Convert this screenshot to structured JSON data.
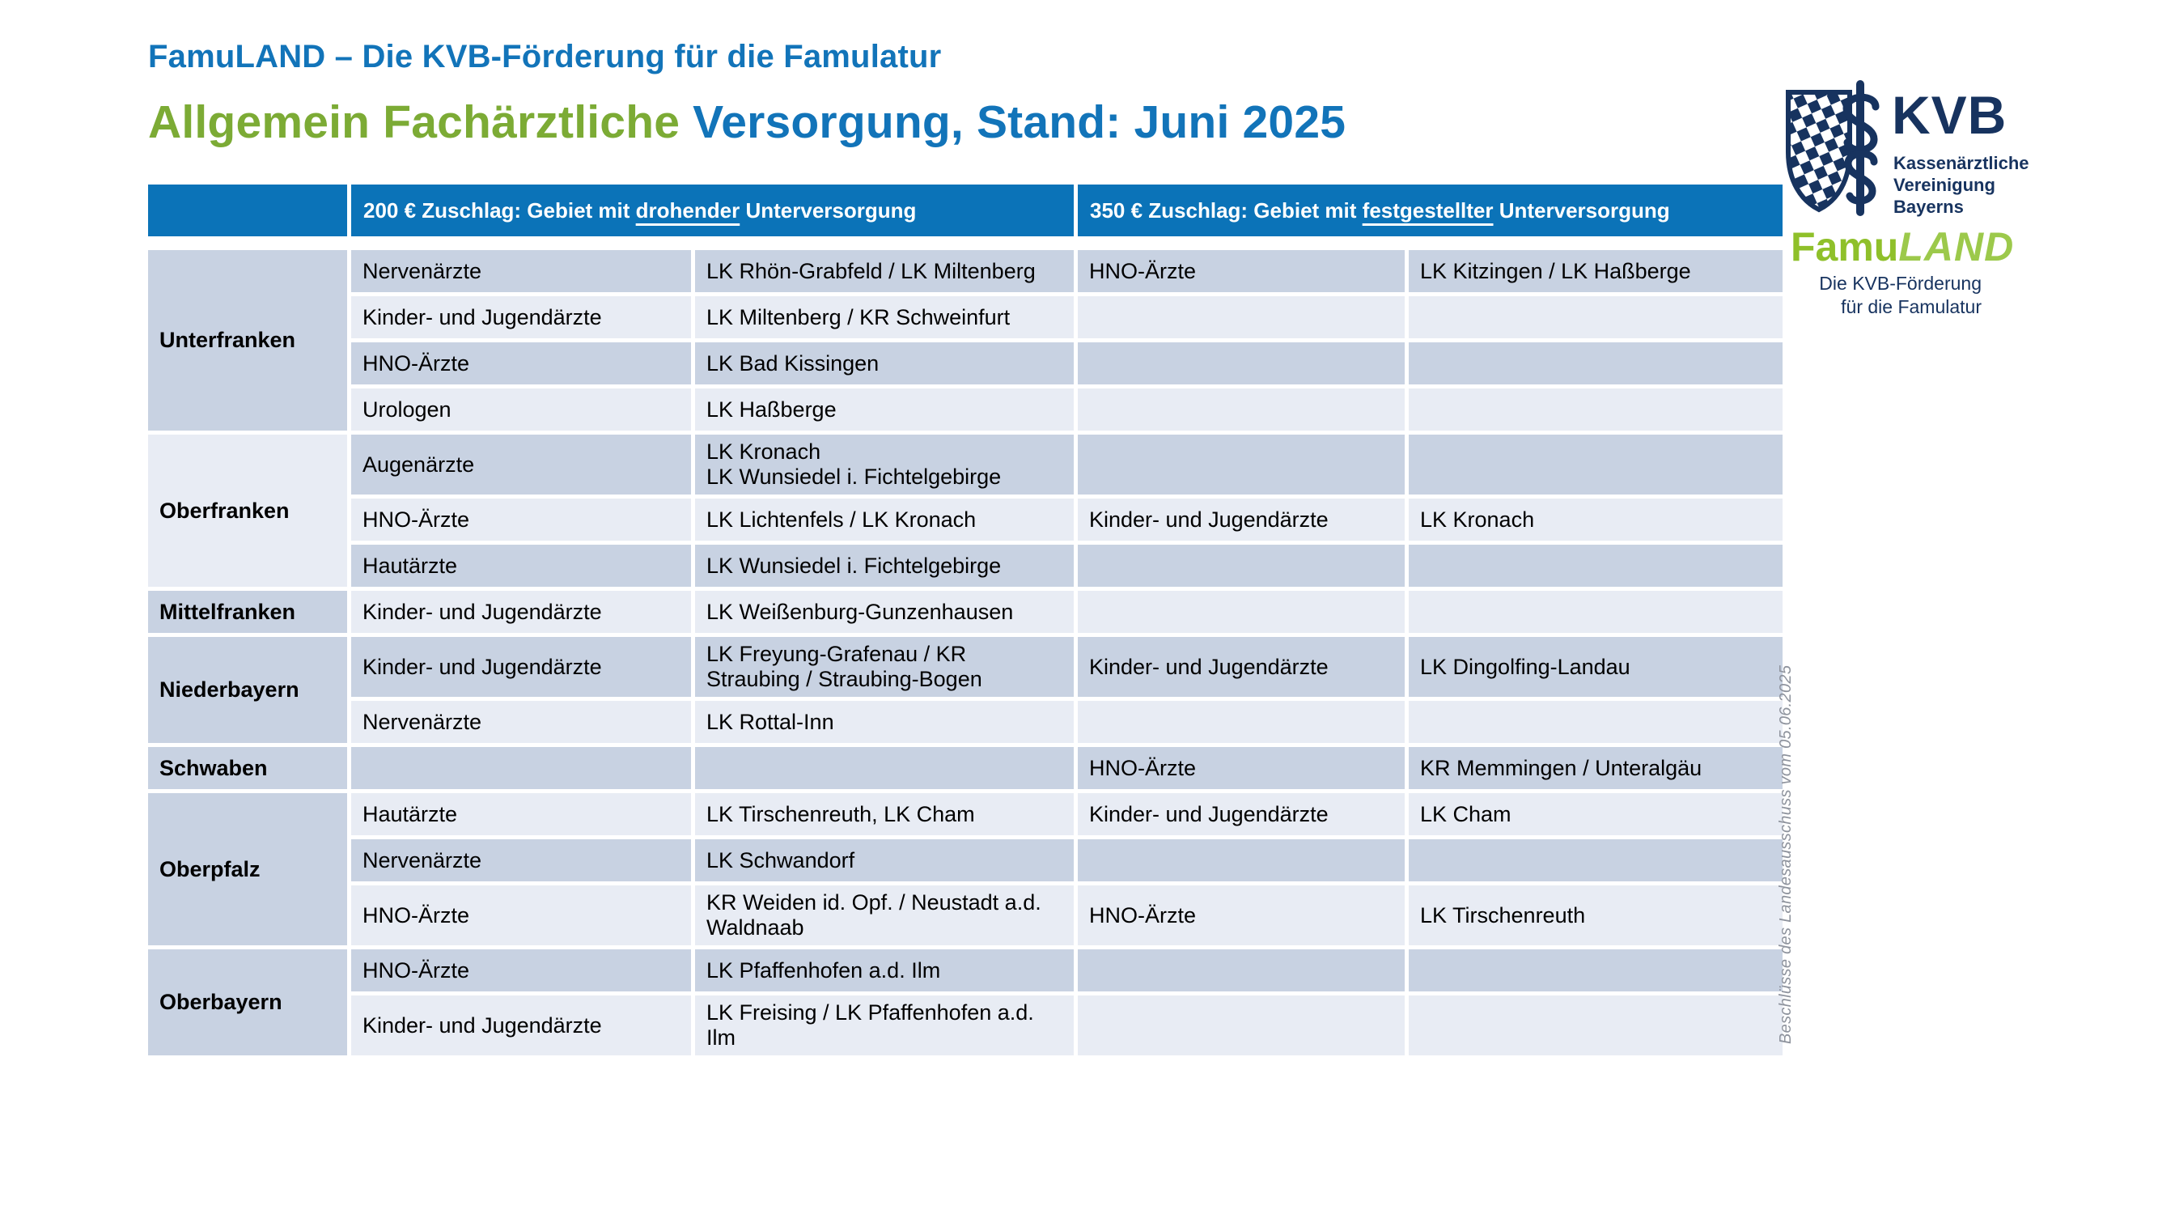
{
  "title": {
    "line1": "FamuLAND – Die KVB-Förderung für die Famulatur",
    "line2_green": "Allgemein Fachärztliche",
    "line2_blue": " Versorgung, Stand: Juni 2025"
  },
  "colors": {
    "title_blue": "#1274b9",
    "title_green": "#7cab35",
    "header_blue": "#0b73b8",
    "row_dark": "#c8d2e2",
    "row_light": "#e8ecf4",
    "logo_navy": "#17335f",
    "logo_green": "#8fc02a",
    "note_gray": "#8e939d"
  },
  "table": {
    "corner": "",
    "headers": [
      {
        "prefix": "200 € Zuschlag: Gebiet mit ",
        "underlined": "drohender",
        "suffix": " Unterversorgung"
      },
      {
        "prefix": "350 € Zuschlag: Gebiet mit ",
        "underlined": "festgestellter",
        "suffix": " Unterversorgung"
      }
    ],
    "sections": [
      {
        "region": "Unterfranken",
        "shade": "dark",
        "rows": [
          {
            "spec200": "Nervenärzte",
            "area200": "LK Rhön-Grabfeld / LK Miltenberg",
            "spec350": "HNO-Ärzte",
            "area350": "LK Kitzingen / LK Haßberge"
          },
          {
            "spec200": "Kinder- und Jugendärzte",
            "area200": "LK Miltenberg / KR Schweinfurt",
            "spec350": "",
            "area350": ""
          },
          {
            "spec200": "HNO-Ärzte",
            "area200": "LK Bad Kissingen",
            "spec350": "",
            "area350": ""
          },
          {
            "spec200": "Urologen",
            "area200": "LK Haßberge",
            "spec350": "",
            "area350": ""
          }
        ]
      },
      {
        "region": "Oberfranken",
        "shade": "light",
        "rows": [
          {
            "spec200": "Augenärzte",
            "area200": "LK Kronach\nLK Wunsiedel i. Fichtelgebirge",
            "spec350": "",
            "area350": ""
          },
          {
            "spec200": "HNO-Ärzte",
            "area200": "LK Lichtenfels / LK Kronach",
            "spec350": "Kinder- und Jugendärzte",
            "area350": "LK Kronach"
          },
          {
            "spec200": "Hautärzte",
            "area200": "LK Wunsiedel i. Fichtelgebirge",
            "spec350": "",
            "area350": ""
          }
        ]
      },
      {
        "region": "Mittelfranken",
        "shade": "dark",
        "rows": [
          {
            "spec200": "Kinder- und Jugendärzte",
            "area200": "LK Weißenburg-Gunzenhausen",
            "spec350": "",
            "area350": ""
          }
        ]
      },
      {
        "region": "Niederbayern",
        "shade": "dark",
        "rows": [
          {
            "spec200": "Kinder- und Jugendärzte",
            "area200": "LK Freyung-Grafenau / KR Straubing / Straubing-Bogen",
            "spec350": "Kinder- und Jugendärzte",
            "area350": "LK Dingolfing-Landau"
          },
          {
            "spec200": "Nervenärzte",
            "area200": "LK Rottal-Inn",
            "spec350": "",
            "area350": ""
          }
        ]
      },
      {
        "region": "Schwaben",
        "shade": "dark",
        "rows": [
          {
            "spec200": "",
            "area200": "",
            "spec350": "HNO-Ärzte",
            "area350": "KR Memmingen / Unteralgäu"
          }
        ]
      },
      {
        "region": "Oberpfalz",
        "shade": "dark",
        "rows": [
          {
            "spec200": "Hautärzte",
            "area200": "LK Tirschenreuth, LK Cham",
            "spec350": "Kinder- und Jugendärzte",
            "area350": "LK Cham"
          },
          {
            "spec200": "Nervenärzte",
            "area200": "LK Schwandorf",
            "spec350": "",
            "area350": ""
          },
          {
            "spec200": "HNO-Ärzte",
            "area200": "KR Weiden id. Opf. / Neustadt a.d. Waldnaab",
            "spec350": "HNO-Ärzte",
            "area350": "LK Tirschenreuth"
          }
        ]
      },
      {
        "region": "Oberbayern",
        "shade": "dark",
        "rows": [
          {
            "spec200": "HNO-Ärzte",
            "area200": "LK Pfaffenhofen a.d. Ilm",
            "spec350": "",
            "area350": ""
          },
          {
            "spec200": "Kinder- und Jugendärzte",
            "area200": "LK Freising / LK Pfaffenhofen a.d. Ilm",
            "spec350": "",
            "area350": ""
          }
        ]
      }
    ]
  },
  "logo": {
    "kvb": "KVB",
    "kvb_sub": "Kassenärztliche\nVereinigung\nBayerns",
    "famu": "Famu",
    "land": "LAND",
    "sub1": "Die KVB-Förderung",
    "sub2": "für die Famulatur"
  },
  "side_note": "Beschlüsse des Landesausschuss vom 05.06.2025"
}
